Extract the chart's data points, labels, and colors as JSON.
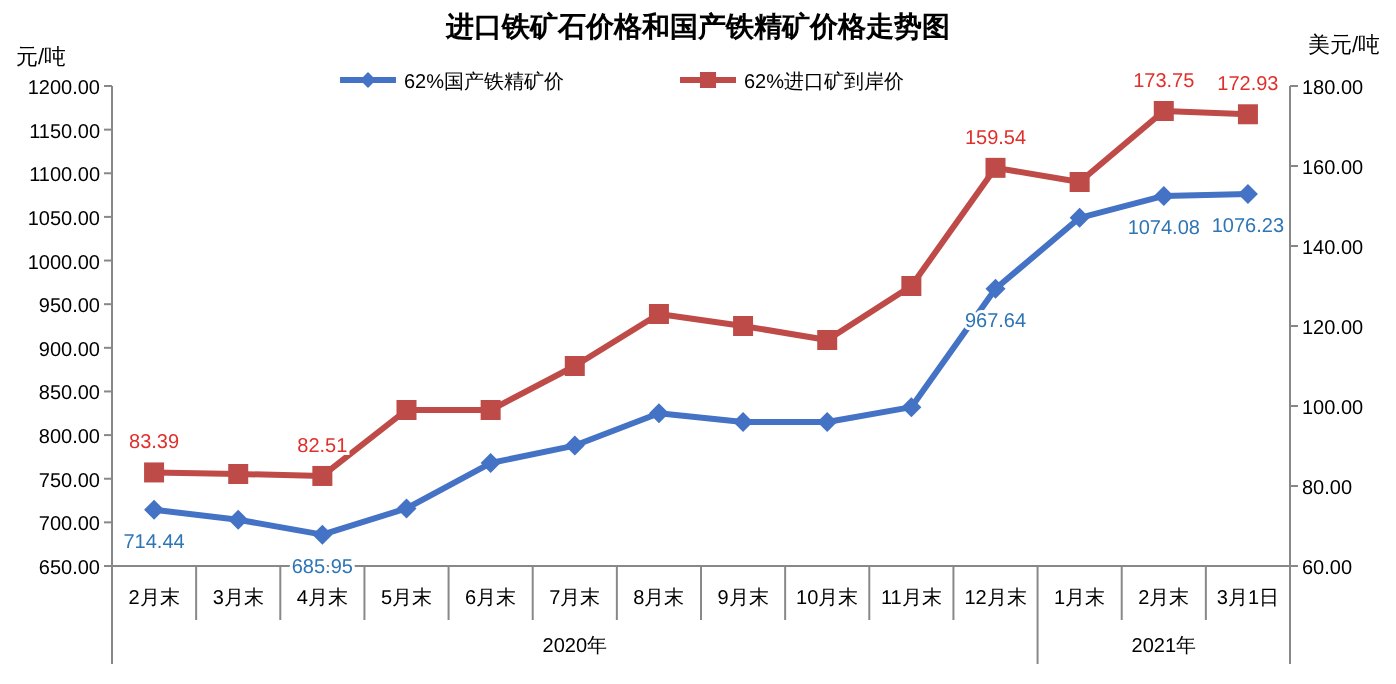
{
  "chart_data": {
    "type": "line",
    "title": "进口铁矿石价格和国产铁精矿价格走势图",
    "ylabel": "元/吨",
    "y2label": "美元/吨",
    "categories": [
      "2月末",
      "3月末",
      "4月末",
      "5月末",
      "6月末",
      "7月末",
      "8月末",
      "9月末",
      "10月末",
      "11月末",
      "12月末",
      "1月末",
      "2月末",
      "3月1日"
    ],
    "series": [
      {
        "name": "62%国产铁精矿价",
        "color": "#4472c4",
        "marker": "diamond",
        "values": [
          714.44,
          703,
          685.95,
          716,
          768,
          788,
          825,
          815,
          815,
          832,
          967.64,
          1049,
          1074.08,
          1076.23
        ],
        "value_labels": [
          "714.44",
          null,
          "685.95",
          null,
          null,
          null,
          null,
          null,
          null,
          null,
          "967.64",
          null,
          "1074.08",
          "1076.23"
        ]
      },
      {
        "name": "62%进口矿到岸价",
        "color": "#be4b48",
        "marker": "square",
        "axis": "y2",
        "values": [
          83.39,
          83.0,
          82.51,
          99,
          99,
          110,
          123,
          120,
          116.5,
          130,
          159.54,
          156,
          173.75,
          172.93
        ],
        "value_labels": [
          "83.39",
          null,
          "82.51",
          null,
          null,
          null,
          null,
          null,
          null,
          null,
          "159.54",
          null,
          "173.75",
          "172.93"
        ]
      }
    ],
    "ylim": [
      650,
      1200
    ],
    "yticks": [
      {
        "value": 650,
        "label": "650.00"
      },
      {
        "value": 700,
        "label": "700.00"
      },
      {
        "value": 750,
        "label": "750.00"
      },
      {
        "value": 800,
        "label": "800.00"
      },
      {
        "value": 850,
        "label": "850.00"
      },
      {
        "value": 900,
        "label": "900.00"
      },
      {
        "value": 950,
        "label": "950.00"
      },
      {
        "value": 1000,
        "label": "1000.00"
      },
      {
        "value": 1050,
        "label": "1050.00"
      },
      {
        "value": 1100,
        "label": "1100.00"
      },
      {
        "value": 1150,
        "label": "1150.00"
      },
      {
        "value": 1200,
        "label": "1200.00"
      }
    ],
    "y2lim": [
      60,
      180
    ],
    "y2ticks": [
      {
        "value": 60,
        "label": "60.00"
      },
      {
        "value": 80,
        "label": "80.00"
      },
      {
        "value": 100,
        "label": "100.00"
      },
      {
        "value": 120,
        "label": "120.00"
      },
      {
        "value": 140,
        "label": "140.00"
      },
      {
        "value": 160,
        "label": "160.00"
      },
      {
        "value": 180,
        "label": "180.00"
      }
    ],
    "annotations": [
      "2020年",
      "2021年"
    ],
    "legend": "top",
    "grid": false,
    "line_style": "solid"
  }
}
